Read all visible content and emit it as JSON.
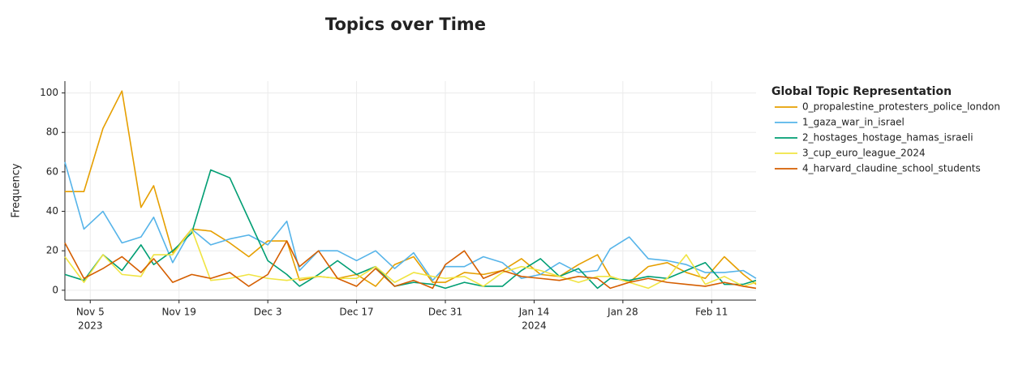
{
  "chart_data": {
    "type": "line",
    "title": "Topics over Time",
    "y_label": "Frequency",
    "legend_title": "Global Topic Representation",
    "legend": "right",
    "grid": true,
    "x": [
      "2023-11-01",
      "2023-11-04",
      "2023-11-07",
      "2023-11-10",
      "2023-11-13",
      "2023-11-15",
      "2023-11-18",
      "2023-11-21",
      "2023-11-24",
      "2023-11-27",
      "2023-11-30",
      "2023-12-03",
      "2023-12-06",
      "2023-12-08",
      "2023-12-11",
      "2023-12-14",
      "2023-12-17",
      "2023-12-20",
      "2023-12-23",
      "2023-12-26",
      "2023-12-29",
      "2023-12-31",
      "2024-01-03",
      "2024-01-06",
      "2024-01-09",
      "2024-01-12",
      "2024-01-15",
      "2024-01-18",
      "2024-01-21",
      "2024-01-24",
      "2024-01-26",
      "2024-01-29",
      "2024-02-01",
      "2024-02-04",
      "2024-02-07",
      "2024-02-10",
      "2024-02-13",
      "2024-02-16",
      "2024-02-18"
    ],
    "xlim": [
      "2023-11-01",
      "2024-02-18"
    ],
    "xticks": [
      {
        "value": "2023-11-05",
        "label": "Nov 5",
        "year": "2023"
      },
      {
        "value": "2023-11-19",
        "label": "Nov 19"
      },
      {
        "value": "2023-12-03",
        "label": "Dec 3"
      },
      {
        "value": "2023-12-17",
        "label": "Dec 17"
      },
      {
        "value": "2023-12-31",
        "label": "Dec 31"
      },
      {
        "value": "2024-01-14",
        "label": "Jan 14",
        "year": "2024"
      },
      {
        "value": "2024-01-28",
        "label": "Jan 28"
      },
      {
        "value": "2024-02-11",
        "label": "Feb 11"
      }
    ],
    "ylim": [
      -5,
      106
    ],
    "yticks": [
      0,
      20,
      40,
      60,
      80,
      100
    ],
    "series": [
      {
        "name": "0_propalestine_protesters_police_london",
        "color": "#E69F00",
        "values": [
          50,
          50,
          82,
          101,
          42,
          53,
          19,
          31,
          30,
          24,
          17,
          25,
          25,
          5,
          7,
          6,
          8,
          2,
          13,
          17,
          4,
          4,
          9,
          8,
          10,
          16,
          8,
          7,
          13,
          18,
          7,
          4,
          12,
          14,
          9,
          6,
          17,
          8,
          3
        ]
      },
      {
        "name": "1_gaza_war_in_israel",
        "color": "#56B4E9",
        "values": [
          65,
          31,
          40,
          24,
          27,
          37,
          14,
          31,
          23,
          26,
          28,
          23,
          35,
          10,
          20,
          20,
          15,
          20,
          11,
          19,
          5,
          12,
          12,
          17,
          14,
          6,
          8,
          14,
          9,
          10,
          21,
          27,
          16,
          15,
          13,
          9,
          9,
          10,
          6
        ]
      },
      {
        "name": "2_hostages_hostage_hamas_israeli",
        "color": "#009E73",
        "values": [
          8,
          5,
          18,
          10,
          23,
          13,
          20,
          29,
          61,
          57,
          36,
          15,
          8,
          2,
          8,
          15,
          8,
          12,
          2,
          4,
          3,
          1,
          4,
          2,
          2,
          10,
          16,
          7,
          11,
          1,
          6,
          5,
          7,
          6,
          10,
          14,
          3,
          3,
          5
        ]
      },
      {
        "name": "3_cup_euro_league_2024",
        "color": "#F0E442",
        "values": [
          17,
          4,
          18,
          8,
          7,
          18,
          18,
          31,
          5,
          6,
          8,
          6,
          5,
          6,
          7,
          6,
          6,
          12,
          4,
          9,
          7,
          6,
          7,
          2,
          9,
          12,
          10,
          7,
          4,
          7,
          7,
          4,
          1,
          6,
          18,
          3,
          7,
          2,
          4
        ]
      },
      {
        "name": "4_harvard_claudine_school_students",
        "color": "#D55E00",
        "values": [
          24,
          6,
          11,
          17,
          9,
          16,
          4,
          8,
          6,
          9,
          2,
          8,
          25,
          12,
          20,
          6,
          2,
          11,
          2,
          5,
          1,
          13,
          20,
          6,
          10,
          7,
          6,
          5,
          7,
          6,
          1,
          4,
          6,
          4,
          3,
          2,
          4,
          2,
          1
        ]
      }
    ]
  }
}
